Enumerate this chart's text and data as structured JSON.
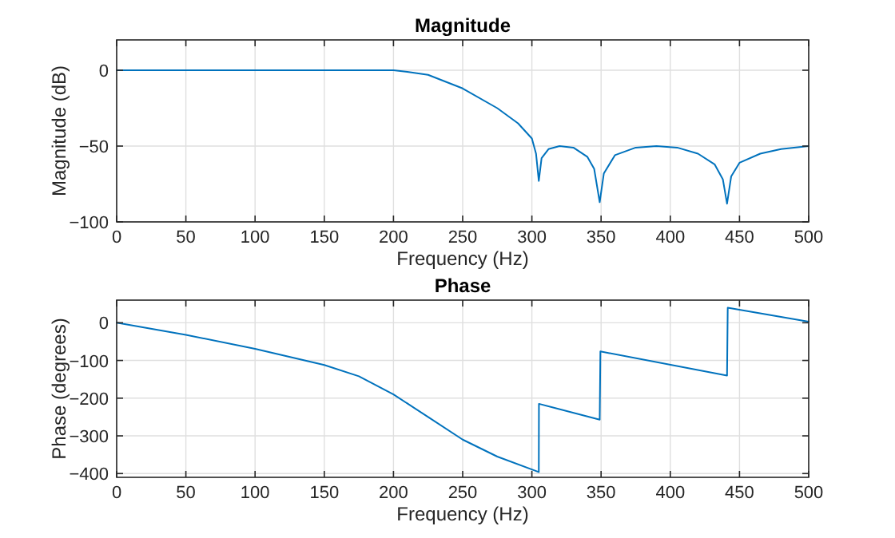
{
  "chart_data": [
    {
      "type": "line",
      "title": "Magnitude",
      "xlabel": "Frequency (Hz)",
      "ylabel": "Magnitude (dB)",
      "xlim": [
        0,
        500
      ],
      "ylim": [
        -100,
        20
      ],
      "xticks": [
        0,
        50,
        100,
        150,
        200,
        250,
        300,
        350,
        400,
        450,
        500
      ],
      "yticks": [
        -100,
        -50,
        0
      ],
      "grid": true,
      "series": [
        {
          "color": "#0072bd",
          "x": [
            0,
            50,
            100,
            150,
            190,
            200,
            210,
            225,
            250,
            275,
            290,
            300,
            303,
            305,
            307,
            312,
            320,
            330,
            340,
            345,
            349,
            352,
            360,
            375,
            390,
            405,
            420,
            432,
            438,
            441,
            444,
            450,
            465,
            480,
            500
          ],
          "values": [
            0,
            0,
            0,
            0,
            0,
            0,
            -1,
            -3,
            -12,
            -25,
            -35,
            -45,
            -55,
            -73,
            -58,
            -52,
            -50,
            -51,
            -57,
            -65,
            -87,
            -68,
            -56,
            -51,
            -50,
            -51,
            -55,
            -62,
            -72,
            -88,
            -70,
            -61,
            -55,
            -52,
            -50
          ]
        }
      ]
    },
    {
      "type": "line",
      "title": "Phase",
      "xlabel": "Frequency (Hz)",
      "ylabel": "Phase (degrees)",
      "xlim": [
        0,
        500
      ],
      "ylim": [
        -410,
        60
      ],
      "xticks": [
        0,
        50,
        100,
        150,
        200,
        250,
        300,
        350,
        400,
        450,
        500
      ],
      "yticks": [
        -400,
        -300,
        -200,
        -100,
        0
      ],
      "grid": true,
      "series": [
        {
          "color": "#0072bd",
          "x": [
            0,
            50,
            100,
            150,
            175,
            200,
            225,
            250,
            275,
            305,
            305.1,
            349,
            349.5,
            441,
            441.5,
            500
          ],
          "values": [
            0,
            -32,
            -69,
            -112,
            -142,
            -190,
            -250,
            -310,
            -355,
            -396,
            -215,
            -257,
            -76,
            -140,
            40,
            3
          ]
        }
      ]
    }
  ]
}
